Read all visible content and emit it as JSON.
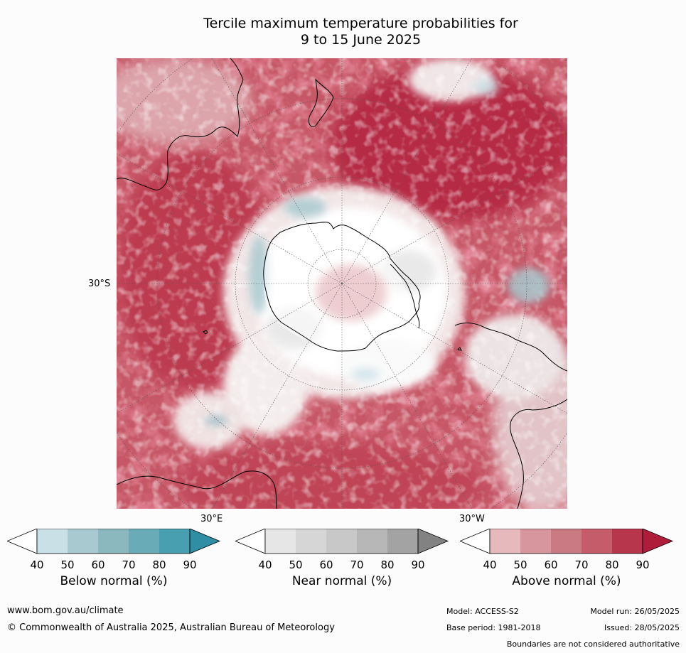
{
  "title_line1": "Tercile maximum temperature probabilities for",
  "title_line2": "9 to 15 June 2025",
  "axis_labels": {
    "lat_30s": "30°S",
    "lon_30e": "30°E",
    "lon_30w": "30°W"
  },
  "colorbars": [
    {
      "title": "Below normal (%)",
      "ticks": [
        "40",
        "50",
        "60",
        "70",
        "80",
        "90"
      ],
      "colors": [
        "#ffffff",
        "#c9e0e6",
        "#a7c9cf",
        "#8bb8bf",
        "#6aabb8",
        "#489fb0",
        "#2f8ea3"
      ]
    },
    {
      "title": "Near normal (%)",
      "ticks": [
        "40",
        "50",
        "60",
        "70",
        "80",
        "90"
      ],
      "colors": [
        "#ffffff",
        "#e6e6e6",
        "#d6d6d6",
        "#c8c8c8",
        "#b7b7b7",
        "#a3a3a3",
        "#828282"
      ]
    },
    {
      "title": "Above normal (%)",
      "ticks": [
        "40",
        "50",
        "60",
        "70",
        "80",
        "90"
      ],
      "colors": [
        "#ffffff",
        "#e6b9bd",
        "#d7969e",
        "#c97a83",
        "#c55c6a",
        "#b8364b",
        "#b01d3b"
      ]
    }
  ],
  "footer": {
    "website": "www.bom.gov.au/climate",
    "copyright": "© Commonwealth of Australia 2025, Australian Bureau of Meteorology",
    "model": "Model: ACCESS-S2",
    "base_period": "Base period: 1981-2018",
    "model_run": "Model run: 26/05/2025",
    "issued": "Issued: 28/05/2025",
    "boundaries": "Boundaries are not considered authoritative"
  }
}
